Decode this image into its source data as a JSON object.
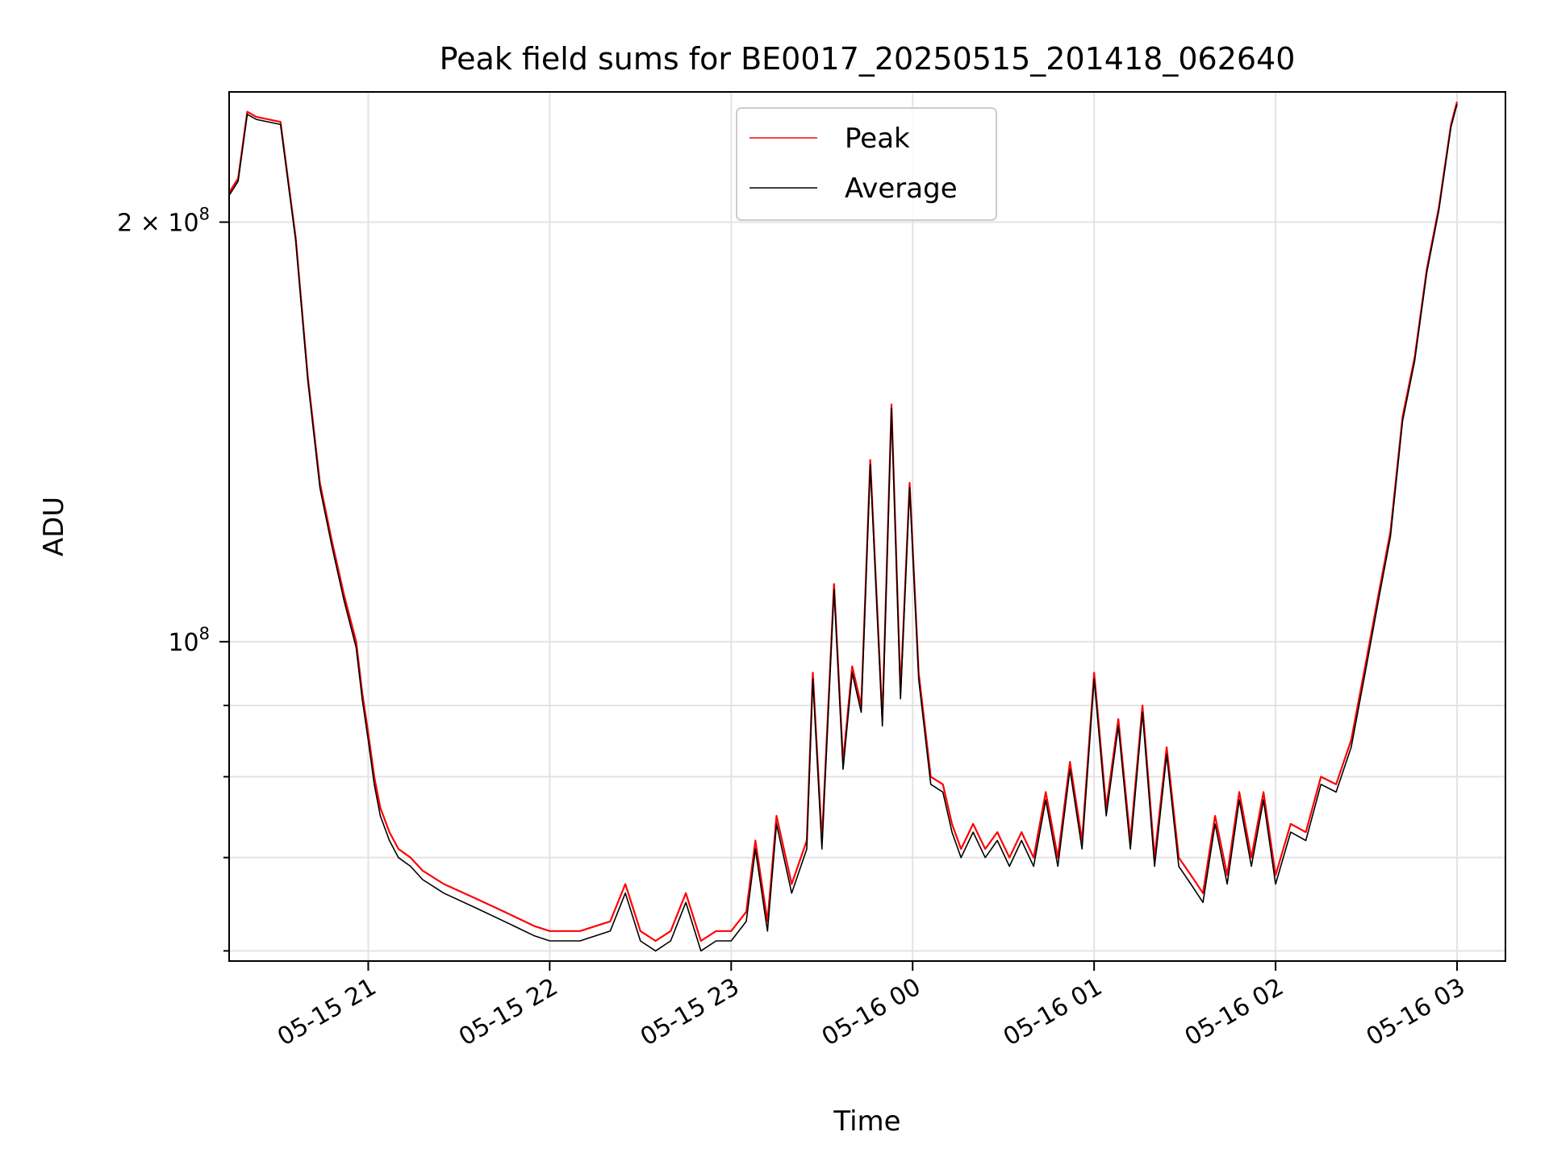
{
  "chart_data": {
    "type": "line",
    "title": "Peak field sums for BE0017_20250515_201418_062640",
    "xlabel": "Time",
    "ylabel": "ADU",
    "yscale": "log",
    "xlim": [
      "2025-05-15 20:14",
      "2025-05-16 03:16"
    ],
    "ylim": [
      59000000,
      248000000
    ],
    "grid": true,
    "legend": "upper-center",
    "x_ticks": [
      "05-15 21",
      "05-15 22",
      "05-15 23",
      "05-16 00",
      "05-16 01",
      "05-16 02",
      "05-16 03"
    ],
    "x_tick_times": [
      "2025-05-15 21:00",
      "2025-05-15 22:00",
      "2025-05-15 23:00",
      "2025-05-16 00:00",
      "2025-05-16 01:00",
      "2025-05-16 02:00",
      "2025-05-16 03:00"
    ],
    "y_ticks": [
      {
        "value": 100000000,
        "mantissa": "",
        "base": "10",
        "exponent": "8"
      },
      {
        "value": 200000000,
        "mantissa": "2",
        "base": "10",
        "exponent": "8"
      }
    ],
    "y_minor_ticks": [
      60000000,
      70000000,
      80000000,
      90000000
    ],
    "series": [
      {
        "name": "Peak",
        "color": "#ff0000",
        "x": [
          "2025-05-15 20:14",
          "2025-05-15 20:17",
          "2025-05-15 20:20",
          "2025-05-15 20:23",
          "2025-05-15 20:31",
          "2025-05-15 20:36",
          "2025-05-15 20:40",
          "2025-05-15 20:44",
          "2025-05-15 20:48",
          "2025-05-15 20:52",
          "2025-05-15 20:56",
          "2025-05-15 20:58",
          "2025-05-15 21:00",
          "2025-05-15 21:02",
          "2025-05-15 21:04",
          "2025-05-15 21:07",
          "2025-05-15 21:10",
          "2025-05-15 21:14",
          "2025-05-15 21:18",
          "2025-05-15 21:25",
          "2025-05-15 21:35",
          "2025-05-15 21:45",
          "2025-05-15 21:55",
          "2025-05-15 22:00",
          "2025-05-15 22:10",
          "2025-05-15 22:20",
          "2025-05-15 22:25",
          "2025-05-15 22:30",
          "2025-05-15 22:35",
          "2025-05-15 22:40",
          "2025-05-15 22:45",
          "2025-05-15 22:50",
          "2025-05-15 22:55",
          "2025-05-15 23:00",
          "2025-05-15 23:05",
          "2025-05-15 23:08",
          "2025-05-15 23:12",
          "2025-05-15 23:15",
          "2025-05-15 23:20",
          "2025-05-15 23:25",
          "2025-05-15 23:27",
          "2025-05-15 23:30",
          "2025-05-15 23:34",
          "2025-05-15 23:37",
          "2025-05-15 23:40",
          "2025-05-15 23:43",
          "2025-05-15 23:46",
          "2025-05-15 23:50",
          "2025-05-15 23:53",
          "2025-05-15 23:56",
          "2025-05-15 23:59",
          "2025-05-16 00:02",
          "2025-05-16 00:06",
          "2025-05-16 00:10",
          "2025-05-16 00:13",
          "2025-05-16 00:16",
          "2025-05-16 00:20",
          "2025-05-16 00:24",
          "2025-05-16 00:28",
          "2025-05-16 00:32",
          "2025-05-16 00:36",
          "2025-05-16 00:40",
          "2025-05-16 00:44",
          "2025-05-16 00:48",
          "2025-05-16 00:52",
          "2025-05-16 00:56",
          "2025-05-16 01:00",
          "2025-05-16 01:04",
          "2025-05-16 01:08",
          "2025-05-16 01:12",
          "2025-05-16 01:16",
          "2025-05-16 01:20",
          "2025-05-16 01:24",
          "2025-05-16 01:28",
          "2025-05-16 01:32",
          "2025-05-16 01:36",
          "2025-05-16 01:40",
          "2025-05-16 01:44",
          "2025-05-16 01:48",
          "2025-05-16 01:52",
          "2025-05-16 01:56",
          "2025-05-16 02:00",
          "2025-05-16 02:05",
          "2025-05-16 02:10",
          "2025-05-16 02:15",
          "2025-05-16 02:20",
          "2025-05-16 02:25",
          "2025-05-16 02:30",
          "2025-05-16 02:34",
          "2025-05-16 02:38",
          "2025-05-16 02:42",
          "2025-05-16 02:46",
          "2025-05-16 02:50",
          "2025-05-16 02:54",
          "2025-05-16 02:58",
          "2025-05-16 03:00"
        ],
        "values": [
          210,
          215,
          240,
          238,
          236,
          195,
          155,
          130,
          118,
          108,
          100,
          92,
          86,
          80,
          76,
          73,
          71,
          70,
          68.5,
          67,
          65.5,
          64,
          62.5,
          62,
          62,
          63,
          67,
          62,
          61,
          62,
          66,
          61,
          62,
          62,
          64,
          72,
          63,
          75,
          67,
          72,
          95,
          72,
          110,
          82,
          96,
          90,
          135,
          88,
          148,
          92,
          130,
          95,
          80,
          79,
          74,
          71,
          74,
          71,
          73,
          70,
          73,
          70,
          78,
          70,
          82,
          72,
          95,
          76,
          88,
          72,
          90,
          70,
          84,
          70,
          68,
          66,
          75,
          68,
          78,
          70,
          78,
          68,
          74,
          73,
          80,
          79,
          85,
          97,
          108,
          120,
          145,
          160,
          185,
          205,
          235,
          244
        ]
      },
      {
        "name": "Average",
        "color": "#000000",
        "x": [
          "2025-05-15 20:14",
          "2025-05-15 20:17",
          "2025-05-15 20:20",
          "2025-05-15 20:23",
          "2025-05-15 20:31",
          "2025-05-15 20:36",
          "2025-05-15 20:40",
          "2025-05-15 20:44",
          "2025-05-15 20:48",
          "2025-05-15 20:52",
          "2025-05-15 20:56",
          "2025-05-15 20:58",
          "2025-05-15 21:00",
          "2025-05-15 21:02",
          "2025-05-15 21:04",
          "2025-05-15 21:07",
          "2025-05-15 21:10",
          "2025-05-15 21:14",
          "2025-05-15 21:18",
          "2025-05-15 21:25",
          "2025-05-15 21:35",
          "2025-05-15 21:45",
          "2025-05-15 21:55",
          "2025-05-15 22:00",
          "2025-05-15 22:10",
          "2025-05-15 22:20",
          "2025-05-15 22:25",
          "2025-05-15 22:30",
          "2025-05-15 22:35",
          "2025-05-15 22:40",
          "2025-05-15 22:45",
          "2025-05-15 22:50",
          "2025-05-15 22:55",
          "2025-05-15 23:00",
          "2025-05-15 23:05",
          "2025-05-15 23:08",
          "2025-05-15 23:12",
          "2025-05-15 23:15",
          "2025-05-15 23:20",
          "2025-05-15 23:25",
          "2025-05-15 23:27",
          "2025-05-15 23:30",
          "2025-05-15 23:34",
          "2025-05-15 23:37",
          "2025-05-15 23:40",
          "2025-05-15 23:43",
          "2025-05-15 23:46",
          "2025-05-15 23:50",
          "2025-05-15 23:53",
          "2025-05-15 23:56",
          "2025-05-15 23:59",
          "2025-05-16 00:02",
          "2025-05-16 00:06",
          "2025-05-16 00:10",
          "2025-05-16 00:13",
          "2025-05-16 00:16",
          "2025-05-16 00:20",
          "2025-05-16 00:24",
          "2025-05-16 00:28",
          "2025-05-16 00:32",
          "2025-05-16 00:36",
          "2025-05-16 00:40",
          "2025-05-16 00:44",
          "2025-05-16 00:48",
          "2025-05-16 00:52",
          "2025-05-16 00:56",
          "2025-05-16 01:00",
          "2025-05-16 01:04",
          "2025-05-16 01:08",
          "2025-05-16 01:12",
          "2025-05-16 01:16",
          "2025-05-16 01:20",
          "2025-05-16 01:24",
          "2025-05-16 01:28",
          "2025-05-16 01:32",
          "2025-05-16 01:36",
          "2025-05-16 01:40",
          "2025-05-16 01:44",
          "2025-05-16 01:48",
          "2025-05-16 01:52",
          "2025-05-16 01:56",
          "2025-05-16 02:00",
          "2025-05-16 02:05",
          "2025-05-16 02:10",
          "2025-05-16 02:15",
          "2025-05-16 02:20",
          "2025-05-16 02:25",
          "2025-05-16 02:30",
          "2025-05-16 02:34",
          "2025-05-16 02:38",
          "2025-05-16 02:42",
          "2025-05-16 02:46",
          "2025-05-16 02:50",
          "2025-05-16 02:54",
          "2025-05-16 02:58",
          "2025-05-16 03:00"
        ],
        "values": [
          209,
          214,
          239,
          237,
          235,
          194,
          154,
          129,
          117,
          107,
          99,
          91,
          85,
          79,
          75,
          72,
          70,
          69,
          67.5,
          66,
          64.5,
          63,
          61.5,
          61,
          61,
          62,
          66,
          61,
          60,
          61,
          65,
          60,
          61,
          61,
          63,
          71,
          62,
          74,
          66,
          71,
          94,
          71,
          109,
          81,
          95,
          89,
          134,
          87,
          147,
          91,
          129,
          94,
          79,
          78,
          73,
          70,
          73,
          70,
          72,
          69,
          72,
          69,
          77,
          69,
          81,
          71,
          94,
          75,
          87,
          71,
          89,
          69,
          83,
          69,
          67,
          65,
          74,
          67,
          77,
          69,
          77,
          67,
          73,
          72,
          79,
          78,
          84,
          96,
          107,
          119,
          144,
          159,
          184,
          204,
          234,
          243
        ]
      }
    ]
  }
}
